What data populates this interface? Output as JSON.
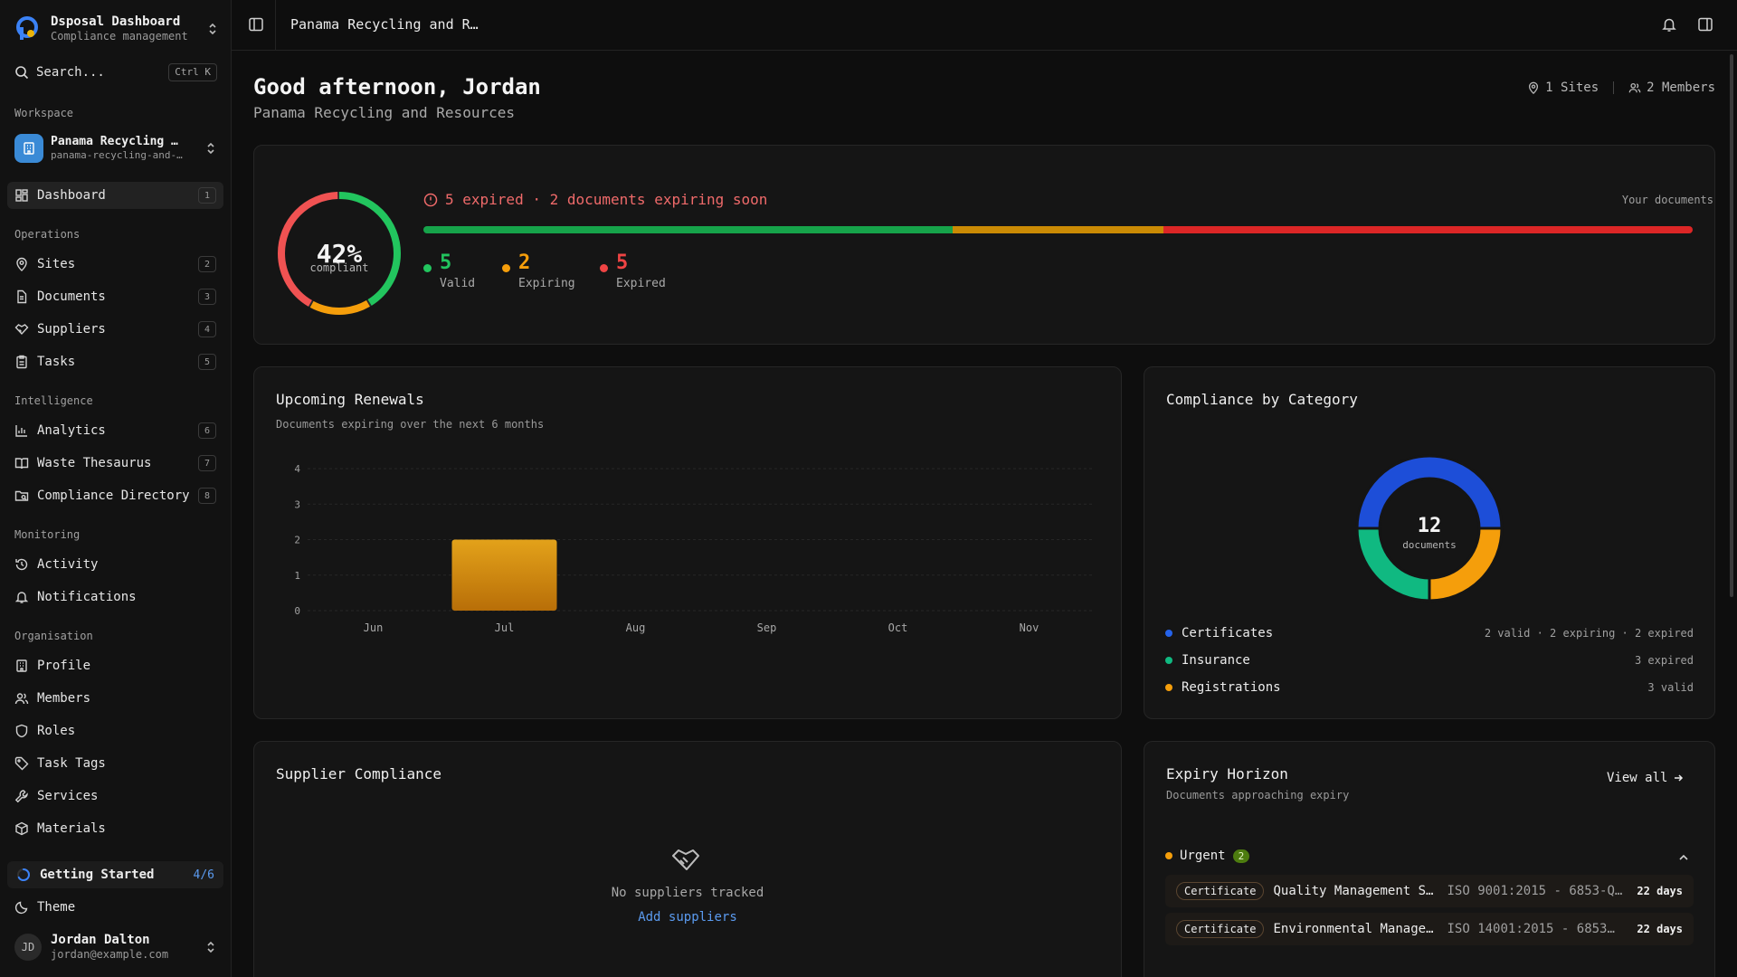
{
  "app": {
    "title": "Dsposal Dashboard",
    "subtitle": "Compliance management"
  },
  "search": {
    "label": "Search...",
    "shortcut": "Ctrl K"
  },
  "sidebar": {
    "workspace_title": "Workspace",
    "workspace": {
      "name": "Panama Recycling …",
      "slug": "panama-recycling-and-…"
    },
    "dashboard": {
      "label": "Dashboard",
      "badge": "1"
    },
    "sections": {
      "operations": "Operations",
      "intelligence": "Intelligence",
      "monitoring": "Monitoring",
      "organisation": "Organisation"
    },
    "operations": [
      {
        "label": "Sites",
        "badge": "2"
      },
      {
        "label": "Documents",
        "badge": "3"
      },
      {
        "label": "Suppliers",
        "badge": "4"
      },
      {
        "label": "Tasks",
        "badge": "5"
      }
    ],
    "intelligence": [
      {
        "label": "Analytics",
        "badge": "6"
      },
      {
        "label": "Waste Thesaurus",
        "badge": "7"
      },
      {
        "label": "Compliance Directory",
        "badge": "8"
      }
    ],
    "monitoring": [
      {
        "label": "Activity"
      },
      {
        "label": "Notifications"
      }
    ],
    "organisation": [
      {
        "label": "Profile"
      },
      {
        "label": "Members"
      },
      {
        "label": "Roles"
      },
      {
        "label": "Task Tags"
      },
      {
        "label": "Services"
      },
      {
        "label": "Materials"
      }
    ],
    "getting_started": {
      "label": "Getting Started",
      "progress": "4/6",
      "done": 4,
      "total": 6
    },
    "theme": {
      "label": "Theme"
    },
    "user": {
      "initials": "JD",
      "name": "Jordan Dalton",
      "email": "jordan@example.com"
    }
  },
  "topbar": {
    "title": "Panama Recycling and R…"
  },
  "header": {
    "greeting": "Good afternoon, Jordan",
    "org": "Panama Recycling and Resources",
    "sites": "1 Sites",
    "members": "2 Members"
  },
  "summary": {
    "percent": "42%",
    "percent_value": 42,
    "percent_label": "compliant",
    "alert": "5 expired · 2 documents expiring soon",
    "your_documents": "Your documents",
    "stats": [
      {
        "value": "5",
        "label": "Valid",
        "color": "#22c55e",
        "count": 5
      },
      {
        "value": "2",
        "label": "Expiring",
        "color": "#f59e0b",
        "count": 2
      },
      {
        "value": "5",
        "label": "Expired",
        "color": "#ef4444",
        "count": 5
      }
    ],
    "bar_colors": {
      "valid": "#16a34a",
      "expiring": "#ca8a04",
      "expired": "#dc2626"
    }
  },
  "renewals": {
    "title": "Upcoming Renewals",
    "subtitle": "Documents expiring over the next 6 months",
    "chart_data": {
      "type": "bar",
      "categories": [
        "Jun",
        "Jul",
        "Aug",
        "Sep",
        "Oct",
        "Nov"
      ],
      "values": [
        0,
        2,
        0,
        0,
        0,
        0
      ],
      "yticks": [
        0,
        1,
        2,
        3,
        4
      ],
      "ylim": [
        0,
        4
      ],
      "title": "",
      "xlabel": "",
      "ylabel": "",
      "grid": true,
      "bar_color": "#d18a0f"
    }
  },
  "category": {
    "title": "Compliance by Category",
    "total": "12",
    "total_label": "documents",
    "chart_data": {
      "type": "pie",
      "labels": [
        "Certificates",
        "Registrations",
        "Insurance"
      ],
      "values": [
        6,
        3,
        3
      ],
      "colors": [
        "#1d4ed8",
        "#f59e0b",
        "#10b981"
      ]
    },
    "legend": [
      {
        "name": "Certificates",
        "detail": "2 valid · 2 expiring · 2 expired",
        "color": "#2563eb"
      },
      {
        "name": "Insurance",
        "detail": "3 expired",
        "color": "#10b981"
      },
      {
        "name": "Registrations",
        "detail": "3 valid",
        "color": "#f59e0b"
      }
    ]
  },
  "suppliers": {
    "title": "Supplier Compliance",
    "empty": "No suppliers tracked",
    "cta": "Add suppliers"
  },
  "expiry": {
    "title": "Expiry Horizon",
    "subtitle": "Documents approaching expiry",
    "view_all": "View all",
    "group": {
      "label": "Urgent",
      "count": "2"
    },
    "rows": [
      {
        "tag": "Certificate",
        "name": "Quality Management S…",
        "ref": "ISO 9001:2015 - 6853-QM…",
        "days": "22 days"
      },
      {
        "tag": "Certificate",
        "name": "Environmental Manageme…",
        "ref": "ISO 14001:2015 - 6853…",
        "days": "22 days"
      }
    ]
  }
}
